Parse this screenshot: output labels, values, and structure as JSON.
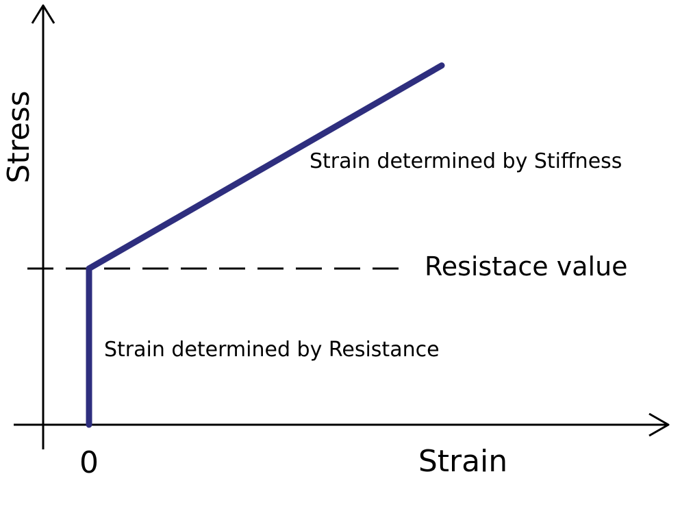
{
  "axes": {
    "y_label": "Stress",
    "x_label": "Strain",
    "x_origin_tick": "0"
  },
  "curve": {
    "color": "#2e2e7e",
    "points": [
      {
        "strain": 0,
        "stress": 0
      },
      {
        "strain": 0,
        "stress": 1
      },
      {
        "strain": 1,
        "stress": 2.3
      }
    ]
  },
  "reference_line": {
    "label": "Resistace value",
    "style": "dashed"
  },
  "annotations": {
    "resistance_region": "Strain determined by Resistance",
    "stiffness_region": "Strain determined by Stiffness"
  }
}
